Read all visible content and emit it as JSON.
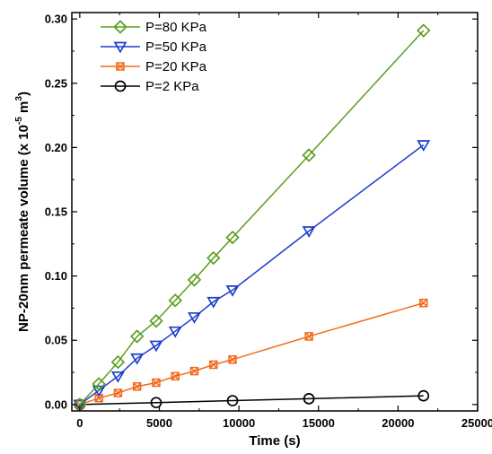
{
  "chart_data": {
    "type": "line",
    "xlabel": "Time (s)",
    "ylabel": "NP-20nm permeate volume (x 10",
    "ylabel_exp1": "-5",
    "ylabel_unit": " m",
    "ylabel_exp2": "3",
    "ylabel_close": ")",
    "xlim": [
      -500,
      25000
    ],
    "ylim": [
      -0.005,
      0.305
    ],
    "xticks": [
      0,
      5000,
      10000,
      15000,
      20000,
      25000
    ],
    "xtick_labels": [
      "0",
      "5000",
      "10000",
      "15000",
      "20000",
      "25000"
    ],
    "yticks": [
      0.0,
      0.05,
      0.1,
      0.15,
      0.2,
      0.25,
      0.3
    ],
    "ytick_labels": [
      "0.00",
      "0.05",
      "0.10",
      "0.15",
      "0.20",
      "0.25",
      "0.30"
    ],
    "grid": false,
    "legend_position": "top-left",
    "series": [
      {
        "name": "P=80 KPa",
        "color": "#5a9e1e",
        "marker": "diamond",
        "x": [
          0,
          1200,
          2400,
          3600,
          4800,
          6000,
          7200,
          8400,
          9600,
          14400,
          21600
        ],
        "y": [
          0.0,
          0.016,
          0.033,
          0.053,
          0.065,
          0.081,
          0.097,
          0.114,
          0.13,
          0.194,
          0.291
        ]
      },
      {
        "name": "P=50 KPa",
        "color": "#1e3ecb",
        "marker": "triangle-down",
        "x": [
          0,
          1200,
          2400,
          3600,
          4800,
          6000,
          7200,
          8400,
          9600,
          14400,
          21600
        ],
        "y": [
          0.0,
          0.011,
          0.022,
          0.036,
          0.046,
          0.057,
          0.068,
          0.08,
          0.089,
          0.135,
          0.202
        ]
      },
      {
        "name": "P=20 KPa",
        "color": "#f26a1b",
        "marker": "x-square",
        "x": [
          0,
          1200,
          2400,
          3600,
          4800,
          6000,
          7200,
          8400,
          9600,
          14400,
          21600
        ],
        "y": [
          0.0,
          0.005,
          0.009,
          0.014,
          0.017,
          0.022,
          0.026,
          0.031,
          0.035,
          0.053,
          0.079
        ]
      },
      {
        "name": "P=2 KPa",
        "color": "#000000",
        "marker": "circle",
        "x": [
          0,
          4800,
          9600,
          14400,
          21600
        ],
        "y": [
          0.0,
          0.0015,
          0.003,
          0.0045,
          0.0068
        ]
      }
    ]
  }
}
